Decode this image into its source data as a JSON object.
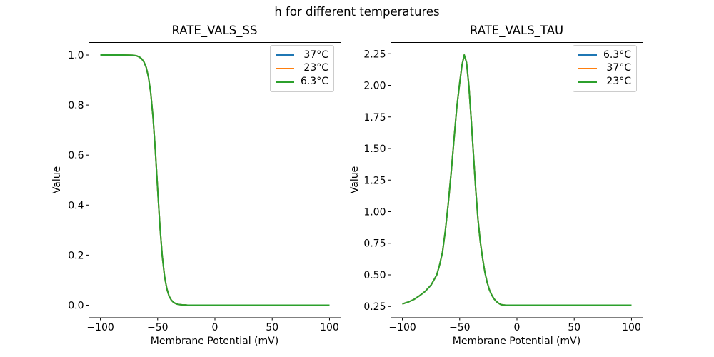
{
  "figure": {
    "suptitle": "h for different temperatures",
    "background": "#ffffff"
  },
  "colors": {
    "series_blue": "#1f77b4",
    "series_orange": "#ff7f0e",
    "series_green": "#2ca02c",
    "spine": "#000000",
    "legend_border": "#cccccc"
  },
  "chart_data": [
    {
      "type": "line",
      "title": "RATE_VALS_SS",
      "xlabel": "Membrane Potential (mV)",
      "ylabel": "Value",
      "xlim": [
        -110,
        110
      ],
      "ylim": [
        -0.05,
        1.05
      ],
      "xticks": [
        -100,
        -50,
        0,
        50,
        100
      ],
      "xtick_labels": [
        "−100",
        "−50",
        "0",
        "50",
        "100"
      ],
      "yticks": [
        0.0,
        0.2,
        0.4,
        0.6,
        0.8,
        1.0
      ],
      "ytick_labels": [
        "0.0",
        "0.2",
        "0.4",
        "0.6",
        "0.8",
        "1.0"
      ],
      "grid": false,
      "legend_position": "upper right",
      "curves_overlap": true,
      "series": [
        {
          "name": "37°C",
          "color": "#1f77b4"
        },
        {
          "name": "23°C",
          "color": "#ff7f0e"
        },
        {
          "name": "6.3°C",
          "color": "#2ca02c"
        }
      ],
      "x": [
        -100,
        -90,
        -80,
        -72,
        -70,
        -68,
        -66,
        -64,
        -62,
        -60,
        -58,
        -56,
        -54,
        -52,
        -50,
        -48,
        -46,
        -44,
        -42,
        -40,
        -38,
        -36,
        -34,
        -32,
        -30,
        -28,
        -26,
        -24,
        -20,
        -10,
        0,
        25,
        50,
        75,
        100
      ],
      "values": [
        1.0,
        1.0,
        1.0,
        0.999,
        0.998,
        0.996,
        0.992,
        0.985,
        0.973,
        0.951,
        0.912,
        0.848,
        0.748,
        0.615,
        0.461,
        0.314,
        0.197,
        0.116,
        0.066,
        0.036,
        0.02,
        0.011,
        0.006,
        0.003,
        0.002,
        0.001,
        0.001,
        0.0,
        0.0,
        0.0,
        0.0,
        0.0,
        0.0,
        0.0,
        0.0
      ]
    },
    {
      "type": "line",
      "title": "RATE_VALS_TAU",
      "xlabel": "Membrane Potential (mV)",
      "ylabel": "Value",
      "xlim": [
        -110,
        110
      ],
      "ylim": [
        0.161,
        2.339
      ],
      "xticks": [
        -100,
        -50,
        0,
        50,
        100
      ],
      "xtick_labels": [
        "−100",
        "−50",
        "0",
        "50",
        "100"
      ],
      "yticks": [
        0.25,
        0.5,
        0.75,
        1.0,
        1.25,
        1.5,
        1.75,
        2.0,
        2.25
      ],
      "ytick_labels": [
        "0.25",
        "0.50",
        "0.75",
        "1.00",
        "1.25",
        "1.50",
        "1.75",
        "2.00",
        "2.25"
      ],
      "grid": false,
      "legend_position": "upper right",
      "curves_overlap": true,
      "series": [
        {
          "name": "6.3°C",
          "color": "#1f77b4"
        },
        {
          "name": "37°C",
          "color": "#ff7f0e"
        },
        {
          "name": "23°C",
          "color": "#2ca02c"
        }
      ],
      "x": [
        -100,
        -95,
        -90,
        -85,
        -80,
        -75,
        -70,
        -67.5,
        -65,
        -62.5,
        -60,
        -57.5,
        -55,
        -52.5,
        -50,
        -48,
        -46,
        -44,
        -42,
        -40,
        -38,
        -36,
        -34,
        -32,
        -30,
        -28,
        -26,
        -24,
        -22,
        -20,
        -18,
        -16,
        -14,
        -12,
        -10,
        0,
        25,
        50,
        75,
        100
      ],
      "values": [
        0.27,
        0.285,
        0.305,
        0.335,
        0.37,
        0.42,
        0.5,
        0.58,
        0.68,
        0.85,
        1.06,
        1.3,
        1.57,
        1.83,
        2.02,
        2.16,
        2.24,
        2.18,
        2.0,
        1.74,
        1.46,
        1.18,
        0.94,
        0.76,
        0.63,
        0.52,
        0.44,
        0.38,
        0.34,
        0.31,
        0.29,
        0.275,
        0.265,
        0.262,
        0.26,
        0.26,
        0.26,
        0.26,
        0.26,
        0.26
      ]
    }
  ]
}
